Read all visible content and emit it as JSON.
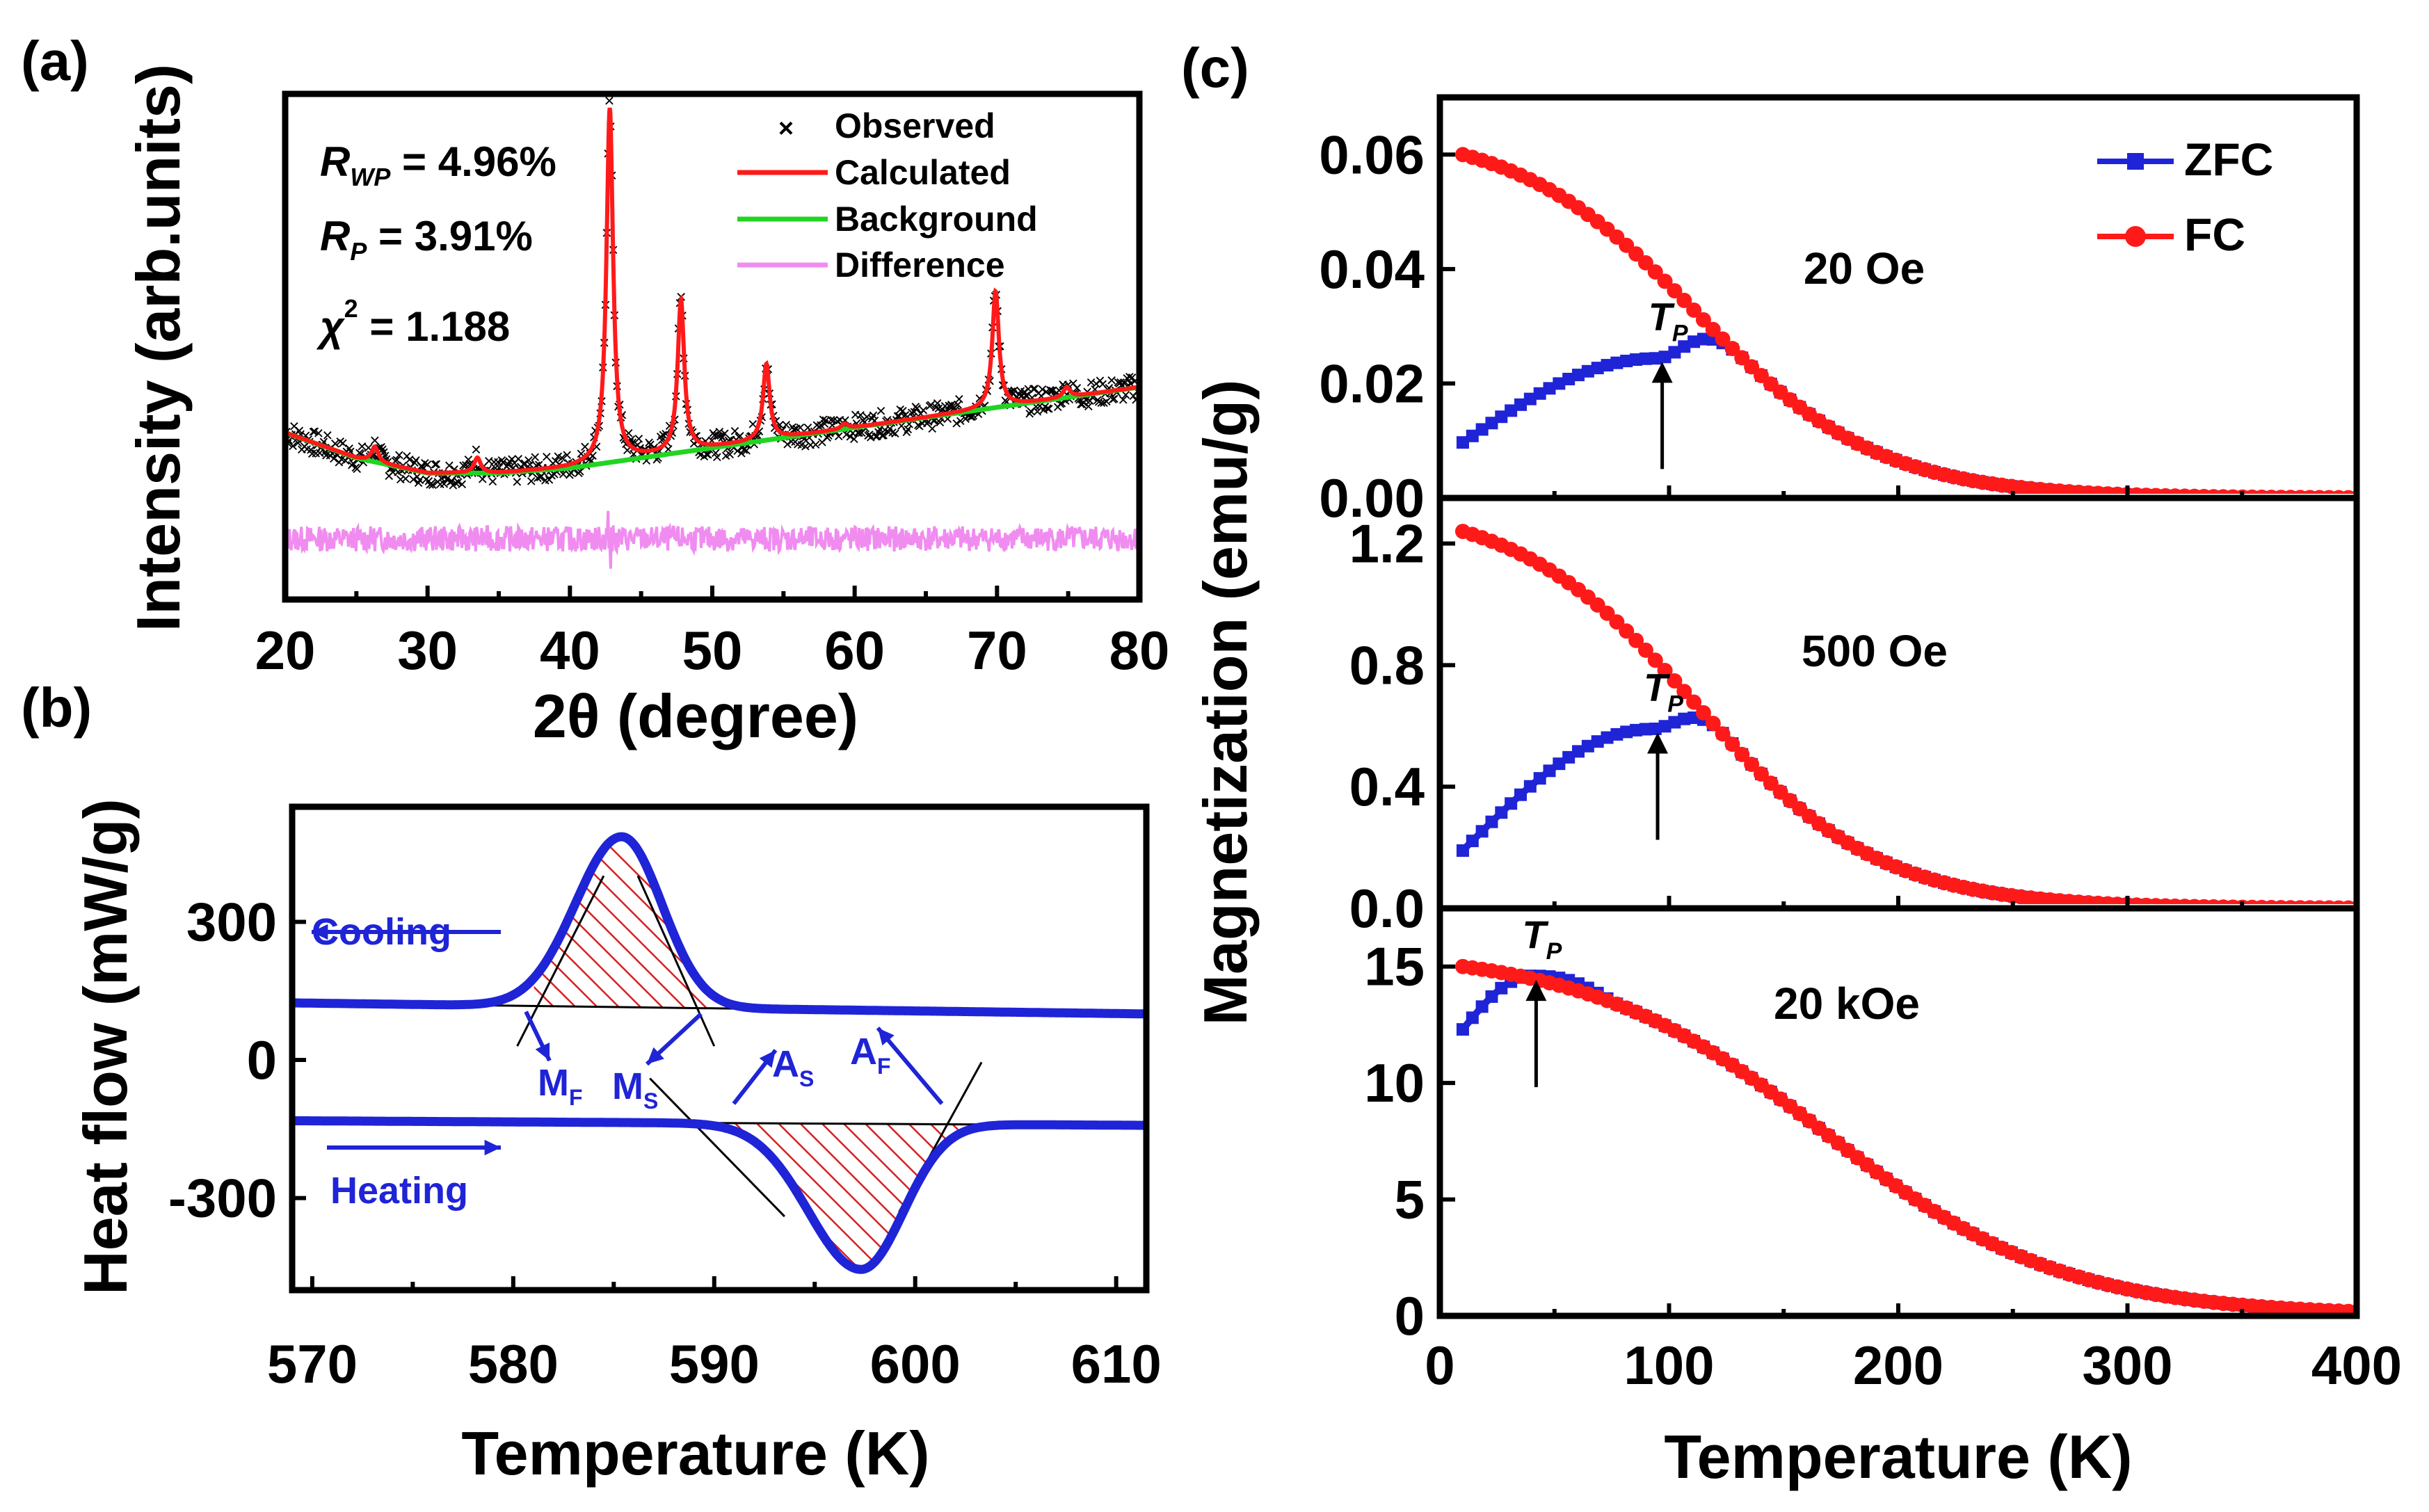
{
  "colors": {
    "observed": "#000000",
    "calculated": "#ff1a1a",
    "background": "#22d422",
    "difference": "#f08cf0",
    "dsc_curve": "#1f24d6",
    "hatch": "#d62020",
    "zfc": "#1f24d6",
    "fc": "#ff1a1a"
  },
  "chart_data": [
    {
      "id": "a",
      "panel_label": "(a)",
      "type": "line",
      "title": "",
      "xlabel": "2θ (degree)",
      "ylabel": "Intensity (arb.units)",
      "xlim": [
        20,
        80
      ],
      "ylim": [
        0,
        100
      ],
      "xticks": [
        20,
        30,
        40,
        50,
        60,
        70,
        80
      ],
      "xtick_labels": [
        "20",
        "30",
        "40",
        "50",
        "60",
        "70",
        "80"
      ],
      "y_tick_labels_shown": false,
      "stats": {
        "rwp_label": "R",
        "rwp_sub": "WP",
        "rwp_value": " = 4.96%",
        "rp_label": "R",
        "rp_sub": "P",
        "rp_value": " = 3.91%",
        "chi_label": "χ",
        "chi_sup": "2",
        "chi_value": " = 1.188"
      },
      "legend": {
        "position": "top-right",
        "entries": [
          "Observed",
          "Calculated",
          "Background",
          "Difference"
        ],
        "observed_marker": "×"
      },
      "series": [
        {
          "name": "Background",
          "x": [
            20,
            25,
            30,
            35,
            40,
            45,
            50,
            55,
            60,
            65,
            70,
            75,
            80
          ],
          "y": [
            33,
            28,
            25,
            25,
            26,
            28,
            30,
            32,
            34,
            36,
            38,
            40,
            42
          ]
        },
        {
          "name": "Calculated",
          "peaks": [
            {
              "x": 26.3,
              "h": 3
            },
            {
              "x": 33.5,
              "h": 3
            },
            {
              "x": 42.8,
              "h": 70
            },
            {
              "x": 47.8,
              "h": 30
            },
            {
              "x": 53.8,
              "h": 15
            },
            {
              "x": 59.3,
              "h": 1
            },
            {
              "x": 69.9,
              "h": 23
            },
            {
              "x": 74.9,
              "h": 2
            }
          ]
        },
        {
          "name": "Observed",
          "note": "noisy points around Calculated"
        },
        {
          "name": "Difference",
          "y_offset": 12,
          "noise_amplitude": 2.5,
          "spike": {
            "x": 42.8,
            "amplitude": 4
          }
        }
      ]
    },
    {
      "id": "b",
      "panel_label": "(b)",
      "type": "line",
      "title": "",
      "xlabel": "Temperature (K)",
      "ylabel": "Heat flow (mW/g)",
      "xlim": [
        569,
        611.5
      ],
      "ylim": [
        -500,
        550
      ],
      "xticks": [
        570,
        580,
        590,
        600,
        610
      ],
      "xtick_labels": [
        "570",
        "580",
        "590",
        "600",
        "610"
      ],
      "yticks": [
        -300,
        0,
        300
      ],
      "ytick_labels": [
        "-300",
        "0",
        "300"
      ],
      "series": [
        {
          "name": "Cooling",
          "baseline": [
            [
              569,
              124
            ],
            [
              611.5,
              100
            ]
          ],
          "peak_center": 585.4,
          "peak_max": 485,
          "peak_width_left": 2.3,
          "peak_width_right": 2.0
        },
        {
          "name": "Heating",
          "baseline": [
            [
              569,
              -132
            ],
            [
              611.5,
              -142
            ]
          ],
          "peak_center": 597.3,
          "peak_min": -455,
          "peak_width_left": 2.6,
          "peak_width_right": 2.1
        }
      ],
      "annotations": {
        "cooling_label": "Cooling",
        "heating_label": "Heating",
        "ms_main": "M",
        "ms_sub": "S",
        "mf_main": "M",
        "mf_sub": "F",
        "as_main": "A",
        "as_sub": "S",
        "af_main": "A",
        "af_sub": "F",
        "mf_temp": 581.5,
        "ms_temp": 589,
        "as_temp": 590.8,
        "af_temp": 601.5
      }
    },
    {
      "id": "c",
      "panel_label": "(c)",
      "type": "line",
      "shared_xlabel": "Temperature (K)",
      "shared_ylabel": "Magnetization (emu/g)",
      "xlim": [
        0,
        400
      ],
      "xticks": [
        0,
        100,
        200,
        300,
        400
      ],
      "xtick_labels": [
        "0",
        "100",
        "200",
        "300",
        "400"
      ],
      "legend": {
        "position": "top-right",
        "entries": [
          "ZFC",
          "FC"
        ]
      },
      "subplots": [
        {
          "field_label": "20 Oe",
          "ylim": [
            0,
            0.07
          ],
          "yticks": [
            0,
            0.02,
            0.04,
            0.06
          ],
          "ytick_labels": [
            "0.00",
            "0.02",
            "0.04",
            "0.06"
          ],
          "tp_label": "T",
          "tp_sub": "P",
          "tp_x": 97,
          "fc": {
            "start": 0.06,
            "T50": 112,
            "width": 40
          },
          "zfc": {
            "start": 0.0097,
            "peak_T": 95,
            "peak": 0.0244
          }
        },
        {
          "field_label": "500 Oe",
          "ylim": [
            0,
            1.35
          ],
          "yticks": [
            0,
            0.4,
            0.8,
            1.2
          ],
          "ytick_labels": [
            "0.0",
            "0.4",
            "0.8",
            "1.2"
          ],
          "tp_label": "T",
          "tp_sub": "P",
          "tp_x": 95,
          "fc": {
            "start": 1.24,
            "T50": 112,
            "width": 40
          },
          "zfc": {
            "start": 0.19,
            "peak_T": 93,
            "peak": 0.59
          }
        },
        {
          "field_label": "20 kOe",
          "ylim": [
            0,
            17.5
          ],
          "yticks": [
            0,
            5,
            10,
            15
          ],
          "ytick_labels": [
            "0",
            "5",
            "10",
            "15"
          ],
          "tp_label": "T",
          "tp_sub": "P",
          "tp_x": 42,
          "fc": {
            "start": 15.0,
            "T50": 168,
            "width": 52
          },
          "zfc": {
            "start": 12.3,
            "peak_T": 40,
            "peak": 14.6
          }
        }
      ]
    }
  ]
}
